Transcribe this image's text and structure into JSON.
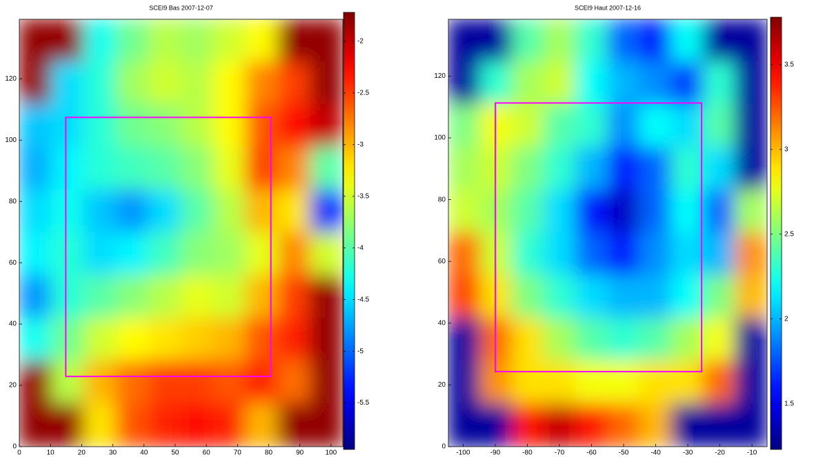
{
  "chart_data": [
    {
      "type": "heatmap",
      "title": "SCEI9 Bas 2007-12-07",
      "colormap": "jet",
      "xlim": [
        0,
        103.8
      ],
      "ylim": [
        0,
        139.4
      ],
      "xticks": [
        0,
        10,
        20,
        30,
        40,
        50,
        60,
        70,
        80,
        90,
        100
      ],
      "yticks": [
        0,
        20,
        40,
        60,
        80,
        100,
        120
      ],
      "clim": [
        -5.95,
        -1.72
      ],
      "cticks": [
        -2,
        -2.5,
        -3,
        -3.5,
        -4,
        -4.5,
        -5,
        -5.5
      ],
      "box": {
        "x": [
          14.9,
          80.7
        ],
        "y": [
          22.9,
          107.4
        ],
        "color": "#ff00ff"
      },
      "values": [
        [
          -1.8,
          -1.8,
          -4.3,
          -3.9,
          -3.6,
          -3.7,
          -3.5,
          -3.3,
          -1.8,
          -1.8
        ],
        [
          -1.8,
          -4.5,
          -4.2,
          -3.7,
          -3.5,
          -3.6,
          -3.3,
          -2.8,
          -2.5,
          -1.8
        ],
        [
          -4.6,
          -4.5,
          -4.2,
          -3.9,
          -3.8,
          -3.6,
          -3.3,
          -2.6,
          -2.3,
          -2.0
        ],
        [
          -4.7,
          -4.4,
          -4.2,
          -4.1,
          -4.0,
          -3.8,
          -3.4,
          -2.5,
          -2.8,
          -4.0
        ],
        [
          -4.5,
          -4.3,
          -4.6,
          -4.8,
          -4.5,
          -4.0,
          -3.6,
          -3.0,
          -3.2,
          -5.2
        ],
        [
          -4.4,
          -4.2,
          -4.5,
          -4.4,
          -4.1,
          -3.8,
          -3.7,
          -3.4,
          -2.8,
          -3.5
        ],
        [
          -4.8,
          -4.2,
          -4.0,
          -3.8,
          -3.6,
          -3.4,
          -3.5,
          -3.0,
          -2.5,
          -1.8
        ],
        [
          -4.3,
          -3.9,
          -3.5,
          -3.3,
          -3.2,
          -3.1,
          -3.0,
          -2.6,
          -2.4,
          -1.8
        ],
        [
          -1.8,
          -3.6,
          -3.0,
          -2.7,
          -2.5,
          -2.5,
          -2.6,
          -2.4,
          -2.7,
          -1.8
        ],
        [
          -1.8,
          -1.8,
          -3.2,
          -2.6,
          -2.4,
          -2.3,
          -2.4,
          -3.0,
          -1.8,
          -1.8
        ]
      ]
    },
    {
      "type": "heatmap",
      "title": "SCEI9 Haut 2007-12-16",
      "colormap": "jet",
      "xlim": [
        -104.6,
        -5.3
      ],
      "ylim": [
        0,
        138.4
      ],
      "xticks": [
        -100,
        -90,
        -80,
        -70,
        -60,
        -50,
        -40,
        -30,
        -20,
        -10
      ],
      "yticks": [
        0,
        20,
        40,
        60,
        80,
        100,
        120
      ],
      "clim": [
        1.23,
        3.78
      ],
      "cticks": [
        1.5,
        2,
        2.5,
        3,
        3.5
      ],
      "box": {
        "x": [
          -90,
          -25.7
        ],
        "y": [
          24.3,
          111.3
        ],
        "color": "#ff00ff"
      },
      "values": [
        [
          1.3,
          1.3,
          2.4,
          2.6,
          2.3,
          1.8,
          1.6,
          2.2,
          1.3,
          1.3
        ],
        [
          1.3,
          2.3,
          2.6,
          2.7,
          2.2,
          2.0,
          1.9,
          1.7,
          2.3,
          1.3
        ],
        [
          2.5,
          2.8,
          2.7,
          2.4,
          2.3,
          1.9,
          2.2,
          2.1,
          2.4,
          1.3
        ],
        [
          2.6,
          2.7,
          2.5,
          2.3,
          2.0,
          1.6,
          1.8,
          2.3,
          2.1,
          1.3
        ],
        [
          2.7,
          2.6,
          2.4,
          2.1,
          1.6,
          1.4,
          1.8,
          2.2,
          1.8,
          2.6
        ],
        [
          3.2,
          2.7,
          2.3,
          2.1,
          1.8,
          1.6,
          1.9,
          2.1,
          2.0,
          3.1
        ],
        [
          3.3,
          2.9,
          2.5,
          2.3,
          2.1,
          2.0,
          2.0,
          2.2,
          2.5,
          3.0
        ],
        [
          1.3,
          3.2,
          2.9,
          2.6,
          2.4,
          2.3,
          2.4,
          2.6,
          2.8,
          1.3
        ],
        [
          1.3,
          3.1,
          2.9,
          2.9,
          2.8,
          2.8,
          2.9,
          2.9,
          3.2,
          1.3
        ],
        [
          1.3,
          1.3,
          3.4,
          3.6,
          3.4,
          3.2,
          3.0,
          1.3,
          1.3,
          1.3
        ]
      ]
    }
  ]
}
